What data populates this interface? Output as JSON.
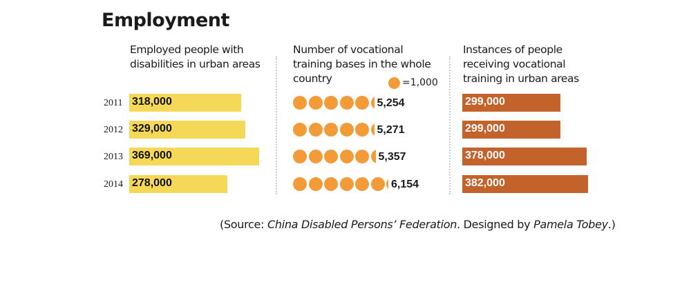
{
  "title": "Employment",
  "source": {
    "open": "(Source: ",
    "org": "China Disabled Persons’ Federation",
    "mid": ". Designed by ",
    "designer": "Pamela Tobey",
    "close": ".)"
  },
  "chart_data": [
    {
      "type": "bar",
      "title": "Employed people with disabilities in urban areas",
      "categories": [
        "2011",
        "2012",
        "2013",
        "2014"
      ],
      "values": [
        318000,
        329000,
        369000,
        278000
      ],
      "labels": [
        "318,000",
        "329,000",
        "369,000",
        "278,000"
      ],
      "color": "#f5d858"
    },
    {
      "type": "pictograph",
      "title": "Number of  vocational training bases in the whole country",
      "categories": [
        "2011",
        "2012",
        "2013",
        "2014"
      ],
      "values": [
        5254,
        5271,
        5357,
        6154
      ],
      "labels": [
        "5,254",
        "5,271",
        "5,357",
        "6,154"
      ],
      "unit_value": 1000,
      "legend": "=1,000",
      "color": "#f29b38"
    },
    {
      "type": "bar",
      "title": "Instances of people receiving vocational training in urban areas",
      "categories": [
        "2011",
        "2012",
        "2013",
        "2014"
      ],
      "values": [
        299000,
        299000,
        378000,
        382000
      ],
      "labels": [
        "299,000",
        "299,000",
        "378,000",
        "382,000"
      ],
      "color": "#c4622b"
    }
  ]
}
